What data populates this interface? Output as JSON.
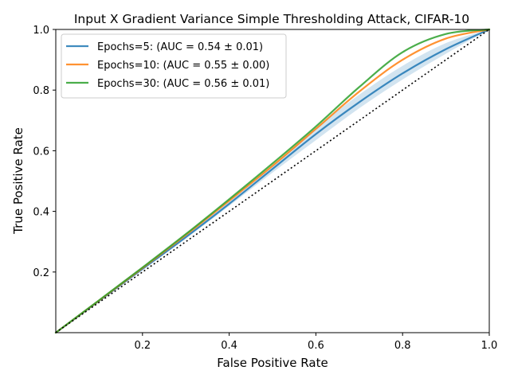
{
  "chart_data": {
    "type": "line",
    "title": "Input X Gradient Variance Simple Thresholding Attack, CIFAR-10",
    "xlabel": "False Positive Rate",
    "ylabel": "True Positive Rate",
    "xlim": [
      0,
      1
    ],
    "ylim": [
      0,
      1
    ],
    "xticks": [
      "0.2",
      "0.4",
      "0.6",
      "0.8",
      "1.0"
    ],
    "yticks": [
      "0.2",
      "0.4",
      "0.6",
      "0.8",
      "1.0"
    ],
    "grid": false,
    "legend_position": "top-left",
    "series": [
      {
        "name": "Epochs=5: (AUC = 0.54 ± 0.01)",
        "color": "#1f77b4",
        "x": [
          0,
          0.1,
          0.2,
          0.3,
          0.4,
          0.5,
          0.6,
          0.7,
          0.8,
          0.9,
          1.0
        ],
        "y": [
          0,
          0.105,
          0.21,
          0.315,
          0.425,
          0.54,
          0.655,
          0.76,
          0.855,
          0.935,
          1.0
        ],
        "band_lower": [
          0,
          0.103,
          0.206,
          0.31,
          0.418,
          0.528,
          0.635,
          0.74,
          0.835,
          0.92,
          1.0
        ],
        "band_upper": [
          0,
          0.107,
          0.214,
          0.32,
          0.432,
          0.55,
          0.675,
          0.785,
          0.88,
          0.955,
          1.0
        ]
      },
      {
        "name": "Epochs=10: (AUC = 0.55 ± 0.00)",
        "color": "#ff7f0e",
        "x": [
          0,
          0.1,
          0.2,
          0.3,
          0.4,
          0.5,
          0.6,
          0.7,
          0.8,
          0.9,
          1.0
        ],
        "y": [
          0,
          0.106,
          0.213,
          0.322,
          0.435,
          0.55,
          0.672,
          0.795,
          0.9,
          0.97,
          1.0
        ]
      },
      {
        "name": "Epochs=30: (AUC = 0.56 ± 0.01)",
        "color": "#2ca02c",
        "x": [
          0,
          0.1,
          0.2,
          0.3,
          0.4,
          0.5,
          0.6,
          0.7,
          0.8,
          0.9,
          1.0
        ],
        "y": [
          0,
          0.107,
          0.215,
          0.325,
          0.44,
          0.558,
          0.68,
          0.81,
          0.925,
          0.985,
          1.0
        ]
      }
    ],
    "diagonal": {
      "style": "dotted",
      "color": "#000000"
    }
  }
}
